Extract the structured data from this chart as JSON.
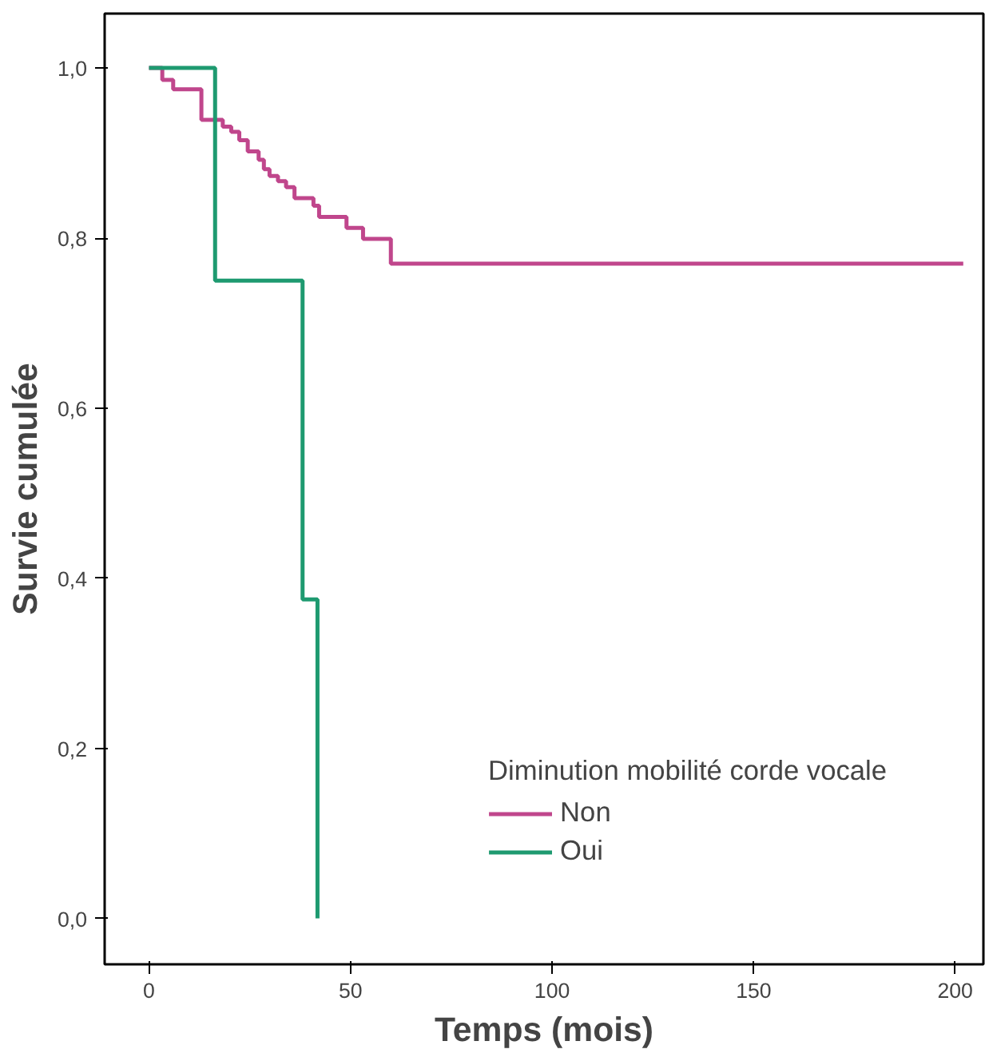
{
  "chart_data": {
    "type": "step",
    "xlabel": "Temps (mois)",
    "ylabel": "Survie cumulée",
    "legend_title": "Diminution mobilité corde vocale",
    "legend": "bottom right",
    "grid": false,
    "xlim": [
      -11,
      207
    ],
    "ylim": [
      -0.054,
      1.064
    ],
    "xticks": [
      0,
      50,
      100,
      150,
      200
    ],
    "yticks": [
      {
        "value": 0,
        "label": "0,0"
      },
      {
        "value": 0.2,
        "label": "0,2"
      },
      {
        "value": 0.4,
        "label": "0,4"
      },
      {
        "value": 0.6,
        "label": "0,6"
      },
      {
        "value": 0.8,
        "label": "0,8"
      },
      {
        "value": 1.0,
        "label": "1,0"
      }
    ],
    "series": [
      {
        "name": "Non",
        "color": "#c0468c",
        "x": [
          0,
          3.3,
          6.0,
          13,
          18.3,
          20.4,
          22.4,
          24.5,
          27.2,
          28.5,
          29.9,
          32.0,
          34.0,
          36.1,
          40.8,
          42.2,
          49.0,
          53.1,
          60.0,
          202
        ],
        "values": [
          1.0,
          0.986,
          0.975,
          0.939,
          0.931,
          0.925,
          0.915,
          0.902,
          0.892,
          0.881,
          0.873,
          0.867,
          0.86,
          0.847,
          0.838,
          0.825,
          0.812,
          0.799,
          0.77,
          0.77
        ]
      },
      {
        "name": "Oui",
        "color": "#1e9a70",
        "x": [
          0,
          16.4,
          38.1,
          41.8
        ],
        "values": [
          1.0,
          0.75,
          0.375,
          0.0
        ]
      }
    ]
  }
}
